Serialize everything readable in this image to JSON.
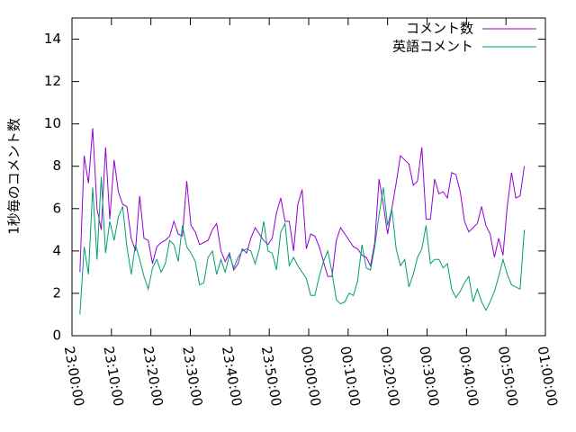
{
  "chart_data": {
    "type": "line",
    "ylabel": "1秒毎のコメント数",
    "x": [
      "23:02:00",
      "23:03:05",
      "23:04:10",
      "23:05:15",
      "23:06:20",
      "23:07:25",
      "23:08:30",
      "23:09:35",
      "23:10:40",
      "23:11:45",
      "23:12:50",
      "23:13:55",
      "23:15:00",
      "23:16:05",
      "23:17:10",
      "23:18:15",
      "23:19:20",
      "23:20:25",
      "23:21:30",
      "23:22:35",
      "23:23:40",
      "23:24:45",
      "23:25:50",
      "23:26:55",
      "23:28:00",
      "23:29:05",
      "23:30:10",
      "23:31:15",
      "23:32:20",
      "23:33:25",
      "23:34:30",
      "23:35:35",
      "23:36:40",
      "23:37:45",
      "23:38:50",
      "23:39:55",
      "23:41:00",
      "23:42:05",
      "23:43:10",
      "23:44:15",
      "23:45:20",
      "23:46:25",
      "23:47:30",
      "23:48:35",
      "23:49:40",
      "23:50:45",
      "23:51:50",
      "23:52:55",
      "23:54:00",
      "23:55:05",
      "23:56:10",
      "23:57:15",
      "23:58:20",
      "23:59:25",
      "00:00:30",
      "00:01:35",
      "00:02:40",
      "00:03:45",
      "00:04:50",
      "00:05:55",
      "00:07:00",
      "00:08:05",
      "00:09:10",
      "00:10:15",
      "00:11:20",
      "00:12:25",
      "00:13:30",
      "00:14:35",
      "00:15:40",
      "00:16:45",
      "00:17:50",
      "00:18:55",
      "00:20:00",
      "00:21:05",
      "00:22:10",
      "00:23:15",
      "00:24:20",
      "00:25:25",
      "00:26:30",
      "00:27:35",
      "00:28:40",
      "00:29:45",
      "00:30:50",
      "00:31:55",
      "00:33:00",
      "00:34:05",
      "00:35:10",
      "00:36:15",
      "00:37:20",
      "00:38:25",
      "00:39:30",
      "00:40:35",
      "00:41:40",
      "00:42:45",
      "00:43:50",
      "00:44:55",
      "00:46:00",
      "00:47:05",
      "00:48:10",
      "00:49:15",
      "00:50:20",
      "00:51:25",
      "00:52:30",
      "00:53:35",
      "00:54:40"
    ],
    "series": [
      {
        "name": "コメント数",
        "color": "#9400d3",
        "values": [
          3.0,
          8.5,
          7.2,
          9.8,
          6.0,
          5.0,
          8.9,
          5.5,
          8.3,
          6.8,
          6.2,
          6.1,
          4.6,
          4.0,
          6.6,
          4.6,
          4.5,
          3.4,
          4.2,
          4.4,
          4.5,
          4.7,
          5.4,
          4.8,
          4.7,
          7.3,
          5.2,
          4.9,
          4.3,
          4.4,
          4.5,
          5.0,
          5.3,
          4.0,
          3.5,
          3.9,
          3.1,
          3.4,
          4.1,
          3.9,
          4.6,
          5.1,
          4.8,
          4.5,
          4.3,
          4.6,
          5.8,
          6.5,
          5.4,
          5.4,
          4.0,
          6.2,
          6.9,
          4.1,
          4.8,
          4.7,
          4.2,
          3.5,
          2.8,
          2.8,
          4.5,
          5.1,
          4.8,
          4.5,
          4.2,
          4.1,
          3.8,
          3.7,
          3.3,
          4.4,
          7.4,
          6.2,
          4.8,
          6.0,
          7.2,
          8.5,
          8.3,
          8.1,
          7.1,
          7.3,
          8.9,
          5.5,
          5.5,
          7.4,
          6.7,
          6.8,
          6.5,
          7.7,
          7.6,
          6.8,
          5.4,
          4.9,
          5.1,
          5.3,
          6.1,
          5.2,
          4.8,
          3.7,
          4.6,
          3.8,
          6.1,
          7.7,
          6.5,
          6.6,
          8.0
        ]
      },
      {
        "name": "英語コメント",
        "color": "#009e73",
        "values": [
          1.0,
          4.2,
          2.9,
          7.0,
          3.6,
          7.5,
          3.9,
          5.4,
          4.5,
          5.6,
          6.1,
          4.2,
          2.9,
          4.3,
          3.6,
          2.8,
          2.2,
          3.2,
          3.6,
          3.0,
          3.4,
          4.5,
          4.3,
          3.5,
          5.2,
          4.2,
          3.9,
          3.5,
          2.4,
          2.5,
          3.7,
          4.0,
          2.9,
          3.6,
          3.0,
          3.8,
          3.2,
          3.7,
          4.0,
          4.1,
          4.0,
          3.4,
          4.1,
          5.4,
          4.0,
          3.9,
          3.1,
          4.9,
          5.3,
          3.3,
          3.7,
          3.3,
          3.0,
          2.7,
          1.9,
          1.9,
          2.8,
          3.5,
          4.0,
          3.0,
          1.7,
          1.5,
          1.6,
          2.0,
          1.9,
          2.6,
          4.3,
          3.2,
          3.1,
          4.2,
          5.7,
          7.0,
          5.2,
          6.0,
          4.1,
          3.3,
          3.6,
          2.3,
          2.9,
          3.7,
          4.1,
          5.2,
          3.4,
          3.6,
          3.6,
          3.2,
          3.4,
          2.2,
          1.8,
          2.1,
          2.5,
          2.8,
          1.6,
          2.2,
          1.6,
          1.2,
          1.6,
          2.1,
          2.8,
          3.6,
          2.9,
          2.4,
          2.3,
          2.2,
          5.0
        ]
      }
    ],
    "xlim": [
      "23:00:00",
      "01:00:00"
    ],
    "xticks": [
      "23:00:00",
      "23:10:00",
      "23:20:00",
      "23:30:00",
      "23:40:00",
      "23:50:00",
      "00:00:00",
      "00:10:00",
      "00:20:00",
      "00:30:00",
      "00:40:00",
      "00:50:00",
      "01:00:00"
    ],
    "ylim": [
      0,
      15
    ],
    "yticks": [
      0,
      2,
      4,
      6,
      8,
      10,
      12,
      14
    ],
    "legend": "top-right"
  }
}
